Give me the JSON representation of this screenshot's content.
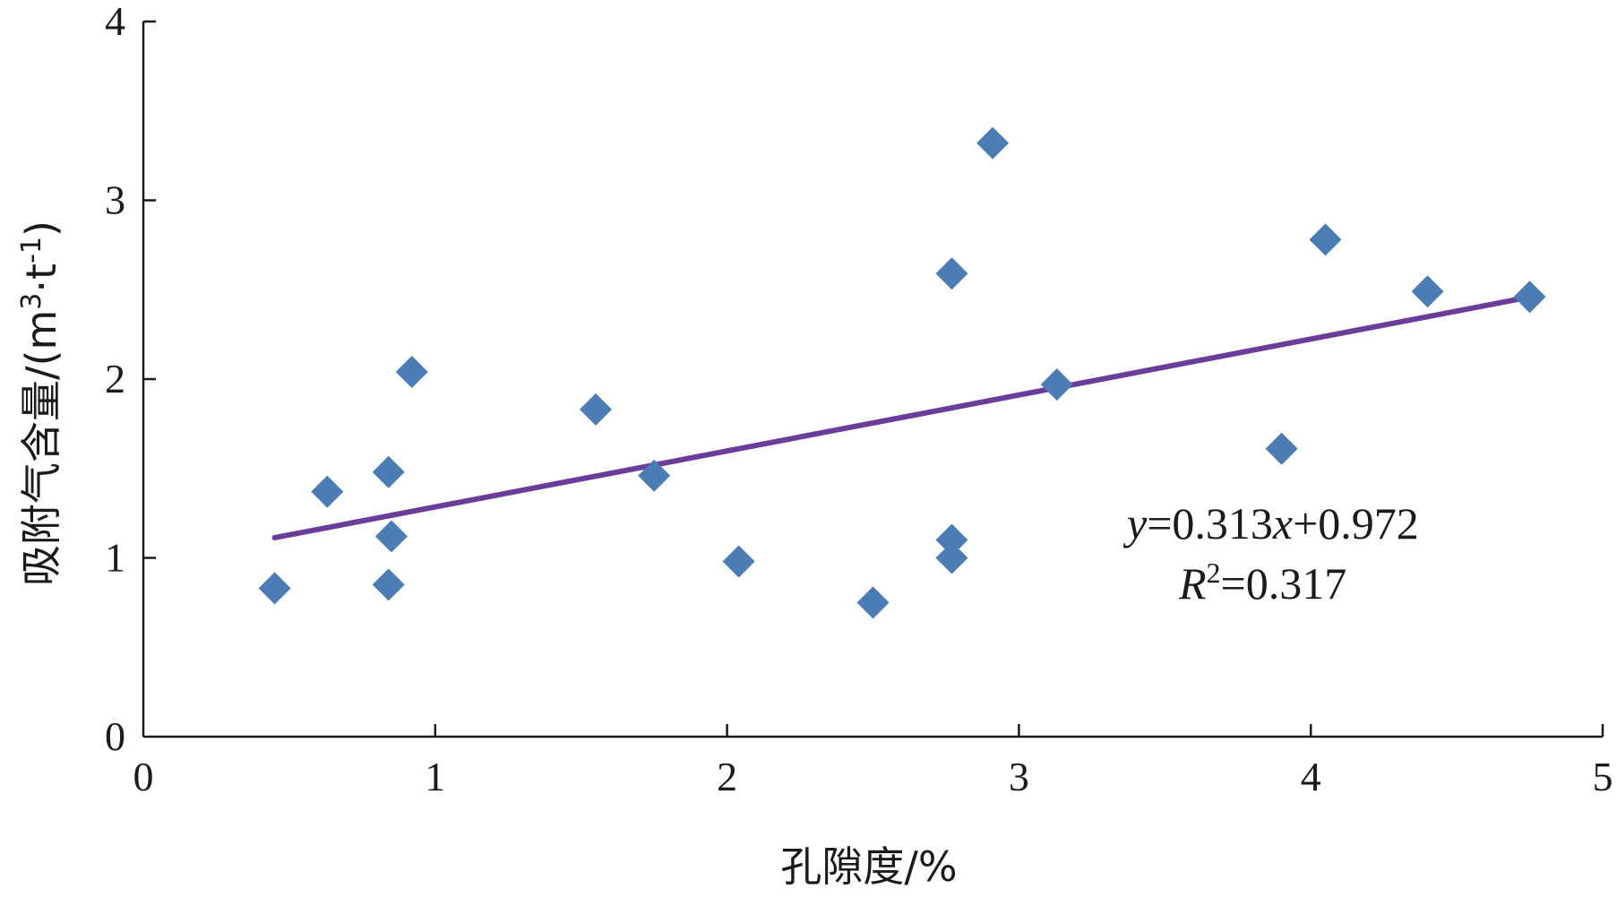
{
  "chart_data": {
    "type": "scatter",
    "title": "",
    "xlabel": "孔隙度/%",
    "ylabel": {
      "main": "吸附气含量/(m",
      "sup1": "3",
      "mid": "·t",
      "sup2": "-1",
      "end": ")"
    },
    "xlim": [
      0,
      5
    ],
    "ylim": [
      0,
      4
    ],
    "xticks": [
      0,
      1,
      2,
      3,
      4,
      5
    ],
    "yticks": [
      0,
      1,
      2,
      3,
      4
    ],
    "xtick_labels": [
      "0",
      "1",
      "2",
      "3",
      "4",
      "5"
    ],
    "ytick_labels": [
      "0",
      "1",
      "2",
      "3",
      "4"
    ],
    "grid": false,
    "marker": "diamond",
    "point_color": "#4a7cb5",
    "line_color": "#6a3d9a",
    "points": [
      {
        "x": 0.45,
        "y": 0.83
      },
      {
        "x": 0.63,
        "y": 1.37
      },
      {
        "x": 0.84,
        "y": 0.85
      },
      {
        "x": 0.84,
        "y": 1.48
      },
      {
        "x": 0.85,
        "y": 1.12
      },
      {
        "x": 0.92,
        "y": 2.04
      },
      {
        "x": 1.55,
        "y": 1.83
      },
      {
        "x": 1.75,
        "y": 1.46
      },
      {
        "x": 2.04,
        "y": 0.98
      },
      {
        "x": 2.5,
        "y": 0.75
      },
      {
        "x": 2.77,
        "y": 1.0
      },
      {
        "x": 2.77,
        "y": 1.1
      },
      {
        "x": 2.77,
        "y": 2.59
      },
      {
        "x": 2.91,
        "y": 3.32
      },
      {
        "x": 3.13,
        "y": 1.97
      },
      {
        "x": 3.9,
        "y": 1.61
      },
      {
        "x": 4.05,
        "y": 2.78
      },
      {
        "x": 4.4,
        "y": 2.49
      },
      {
        "x": 4.75,
        "y": 2.46
      }
    ],
    "trendline": {
      "slope": 0.313,
      "intercept": 0.972,
      "x_range": [
        0.45,
        4.75
      ]
    },
    "annotation": {
      "eq_y": "y",
      "eq_rest": "=0.313",
      "eq_x": "x",
      "eq_tail": "+0.972",
      "r_label": "R",
      "r_sup": "2",
      "r_value": "=0.317"
    }
  }
}
